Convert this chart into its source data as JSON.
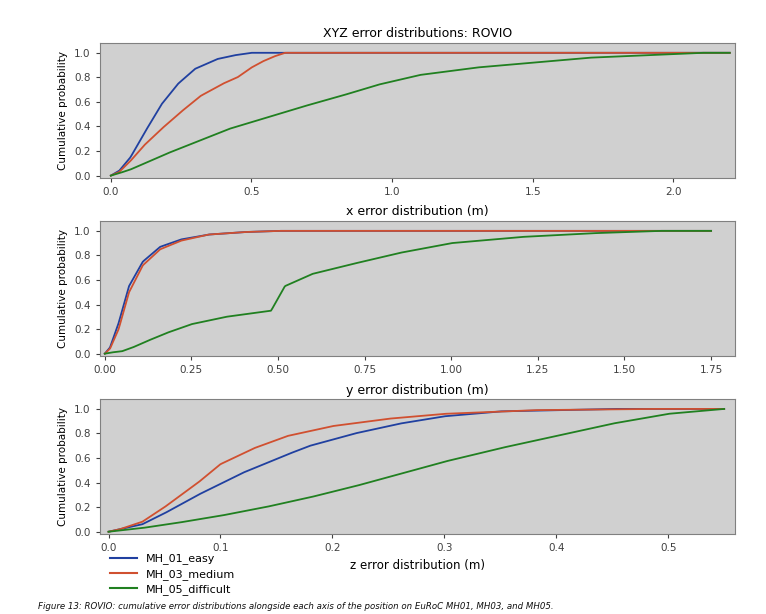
{
  "title1": "XYZ error distributions: ROVIO",
  "title2": "x error distribution (m)",
  "title3": "y error distribution (m)",
  "xlabel3": "z error distribution (m)",
  "ylabel": "Cumulative probability",
  "plot_bg_color": "#d0d0d0",
  "fig_bg_color": "#ffffff",
  "colors": {
    "easy": "#2040a0",
    "medium": "#d05030",
    "difficult": "#208020"
  },
  "legend_labels": [
    "MH_01_easy",
    "MH_03_medium",
    "MH_05_difficult"
  ],
  "caption": "Figure 13: ROVIO: cumulative error distributions alongside each axis of the position on EuRoC MH01, MH03, and MH05.",
  "ax1": {
    "xlim": [
      -0.04,
      2.22
    ],
    "xticks": [
      0.0,
      0.5,
      1.0,
      1.5,
      2.0
    ],
    "ylim": [
      -0.02,
      1.08
    ],
    "yticks": [
      0.0,
      0.2,
      0.4,
      0.6,
      0.8,
      1.0
    ]
  },
  "ax2": {
    "xlim": [
      -0.015,
      1.82
    ],
    "xticks": [
      0.0,
      0.25,
      0.5,
      0.75,
      1.0,
      1.25,
      1.5,
      1.75
    ],
    "ylim": [
      -0.02,
      1.08
    ],
    "yticks": [
      0.0,
      0.2,
      0.4,
      0.6,
      0.8,
      1.0
    ]
  },
  "ax3": {
    "xlim": [
      -0.008,
      0.56
    ],
    "xticks": [
      0.0,
      0.1,
      0.2,
      0.3,
      0.4,
      0.5
    ],
    "ylim": [
      -0.02,
      1.08
    ],
    "yticks": [
      0.0,
      0.2,
      0.4,
      0.6,
      0.8,
      1.0
    ]
  }
}
